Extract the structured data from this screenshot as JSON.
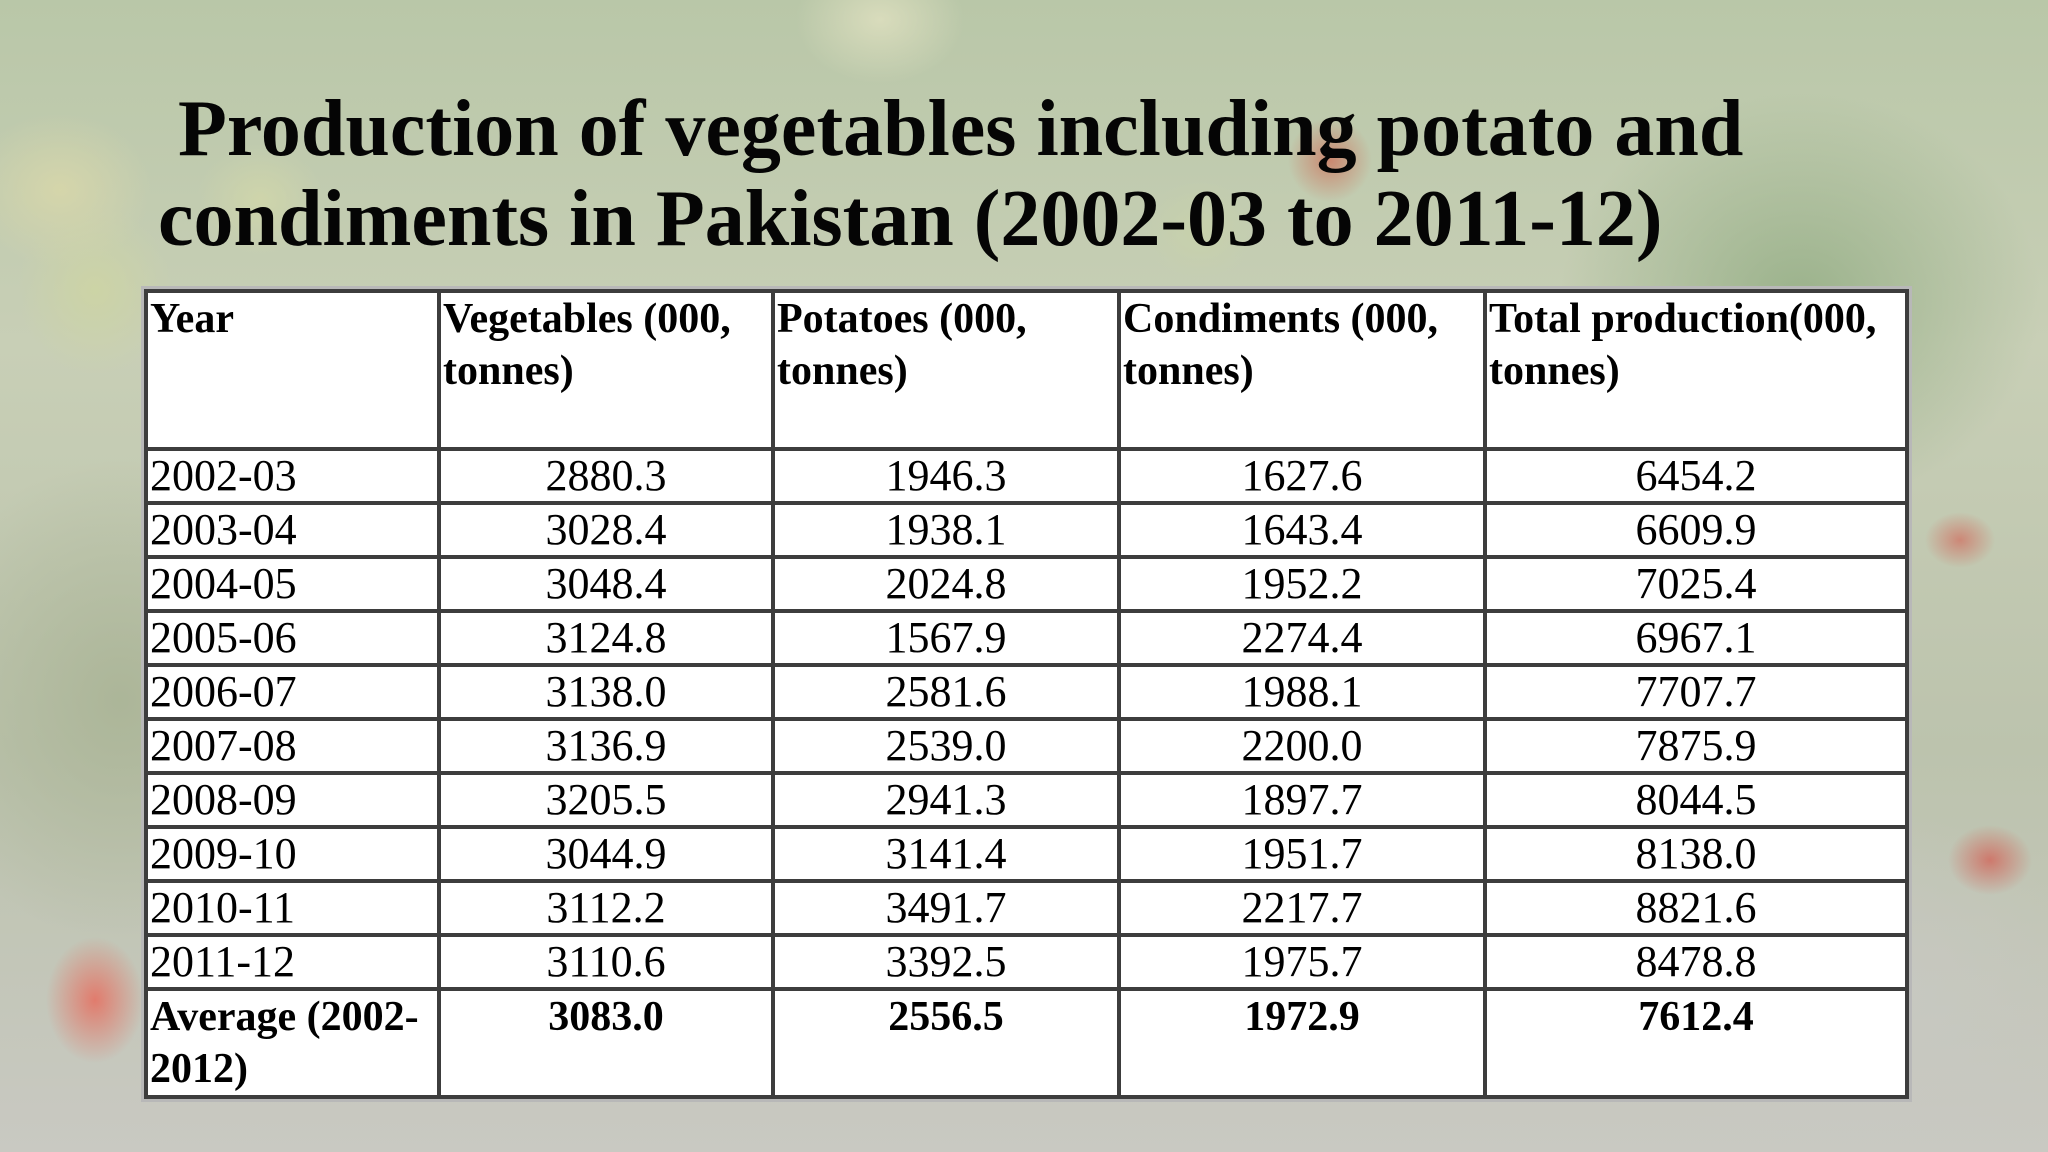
{
  "slide": {
    "title_line1": "Production of vegetables including potato and",
    "title_line2": "condiments in Pakistan (2002-03 to 2011-12)"
  },
  "table": {
    "headers": [
      "Year",
      "Vegetables (000, tonnes)",
      "Potatoes (000, tonnes)",
      "Condiments (000, tonnes)",
      "Total production(000, tonnes)"
    ],
    "rows": [
      [
        "2002-03",
        "2880.3",
        "1946.3",
        "1627.6",
        "6454.2"
      ],
      [
        "2003-04",
        "3028.4",
        "1938.1",
        "1643.4",
        "6609.9"
      ],
      [
        "2004-05",
        "3048.4",
        "2024.8",
        "1952.2",
        "7025.4"
      ],
      [
        "2005-06",
        "3124.8",
        "1567.9",
        "2274.4",
        "6967.1"
      ],
      [
        "2006-07",
        "3138.0",
        "2581.6",
        "1988.1",
        "7707.7"
      ],
      [
        "2007-08",
        "3136.9",
        "2539.0",
        "2200.0",
        "7875.9"
      ],
      [
        "2008-09",
        "3205.5",
        "2941.3",
        "1897.7",
        "8044.5"
      ],
      [
        "2009-10",
        "3044.9",
        "3141.4",
        "1951.7",
        "8138.0"
      ],
      [
        "2010-11",
        "3112.2",
        "3491.7",
        "2217.7",
        "8821.6"
      ],
      [
        "2011-12",
        "3110.6",
        "3392.5",
        "1975.7",
        "8478.8"
      ]
    ],
    "average": [
      "Average (2002-2012)",
      "3083.0",
      "2556.5",
      "1972.9",
      "7612.4"
    ]
  }
}
